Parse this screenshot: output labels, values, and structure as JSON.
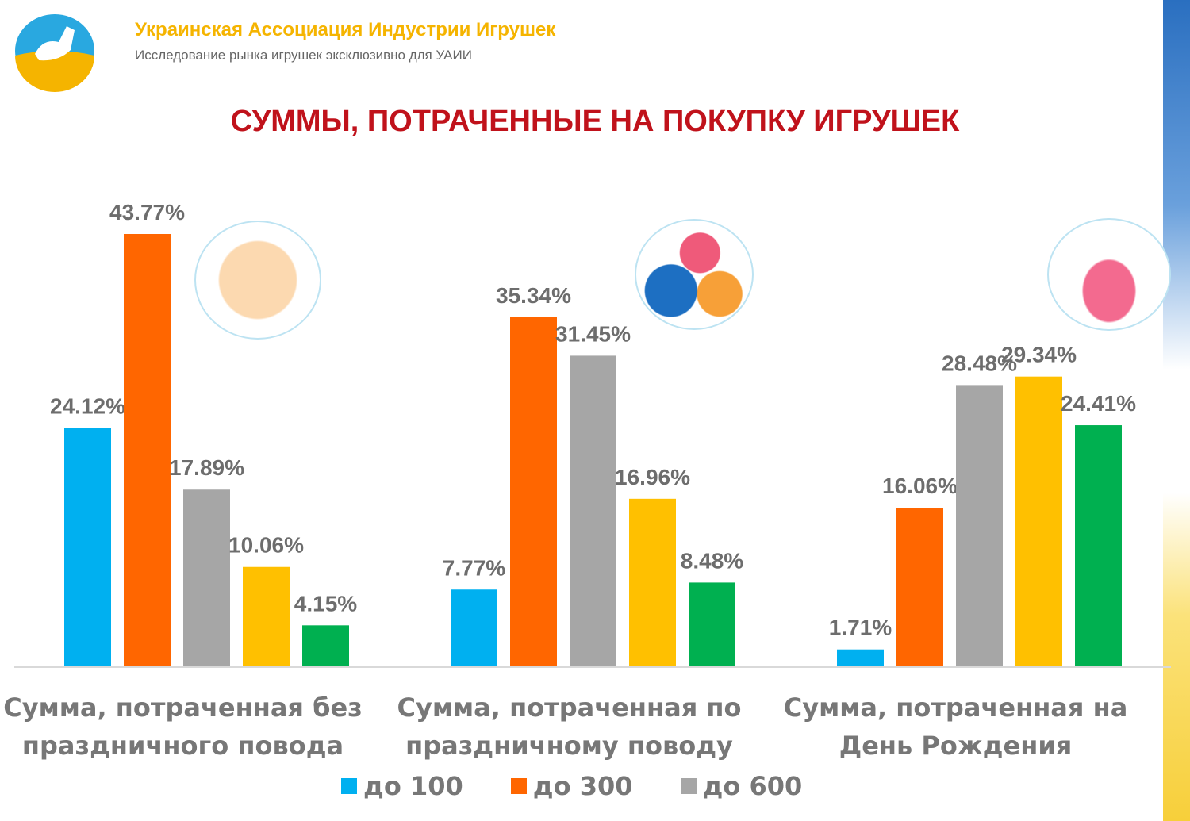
{
  "header": {
    "org": "Украинская Ассоциация Индустрии Игрушек",
    "subtitle": "Исследование рынка игрушек эксклюзивно для УАИИ"
  },
  "chart_data": {
    "type": "bar",
    "title": "СУММЫ, ПОТРАЧЕННЫЕ НА ПОКУПКУ ИГРУШЕК",
    "categories": [
      "Сумма, потраченная без праздничного повода",
      "Сумма, потраченная по праздничному поводу",
      "Сумма, потраченная на День Рождения"
    ],
    "category_lines": [
      [
        "Сумма, потраченная без",
        "праздничного повода"
      ],
      [
        "Сумма, потраченная по",
        "праздничному поводу"
      ],
      [
        "Сумма, потраченная на",
        "День Рождения"
      ]
    ],
    "series": [
      {
        "name": "до 100",
        "color": "#00b0f0",
        "values": [
          24.12,
          7.77,
          1.71
        ]
      },
      {
        "name": "до 300",
        "color": "#ff6600",
        "values": [
          43.77,
          35.34,
          16.06
        ]
      },
      {
        "name": "до 600",
        "color": "#a6a6a6",
        "values": [
          17.89,
          31.45,
          28.48
        ]
      },
      {
        "name": "",
        "color": "#ffc000",
        "values": [
          10.06,
          16.96,
          29.34
        ]
      },
      {
        "name": "",
        "color": "#00b050",
        "values": [
          4.15,
          8.48,
          24.41
        ]
      }
    ],
    "value_suffix": "%",
    "ylim": [
      0,
      45
    ],
    "legend": "bottom",
    "grid": false
  }
}
